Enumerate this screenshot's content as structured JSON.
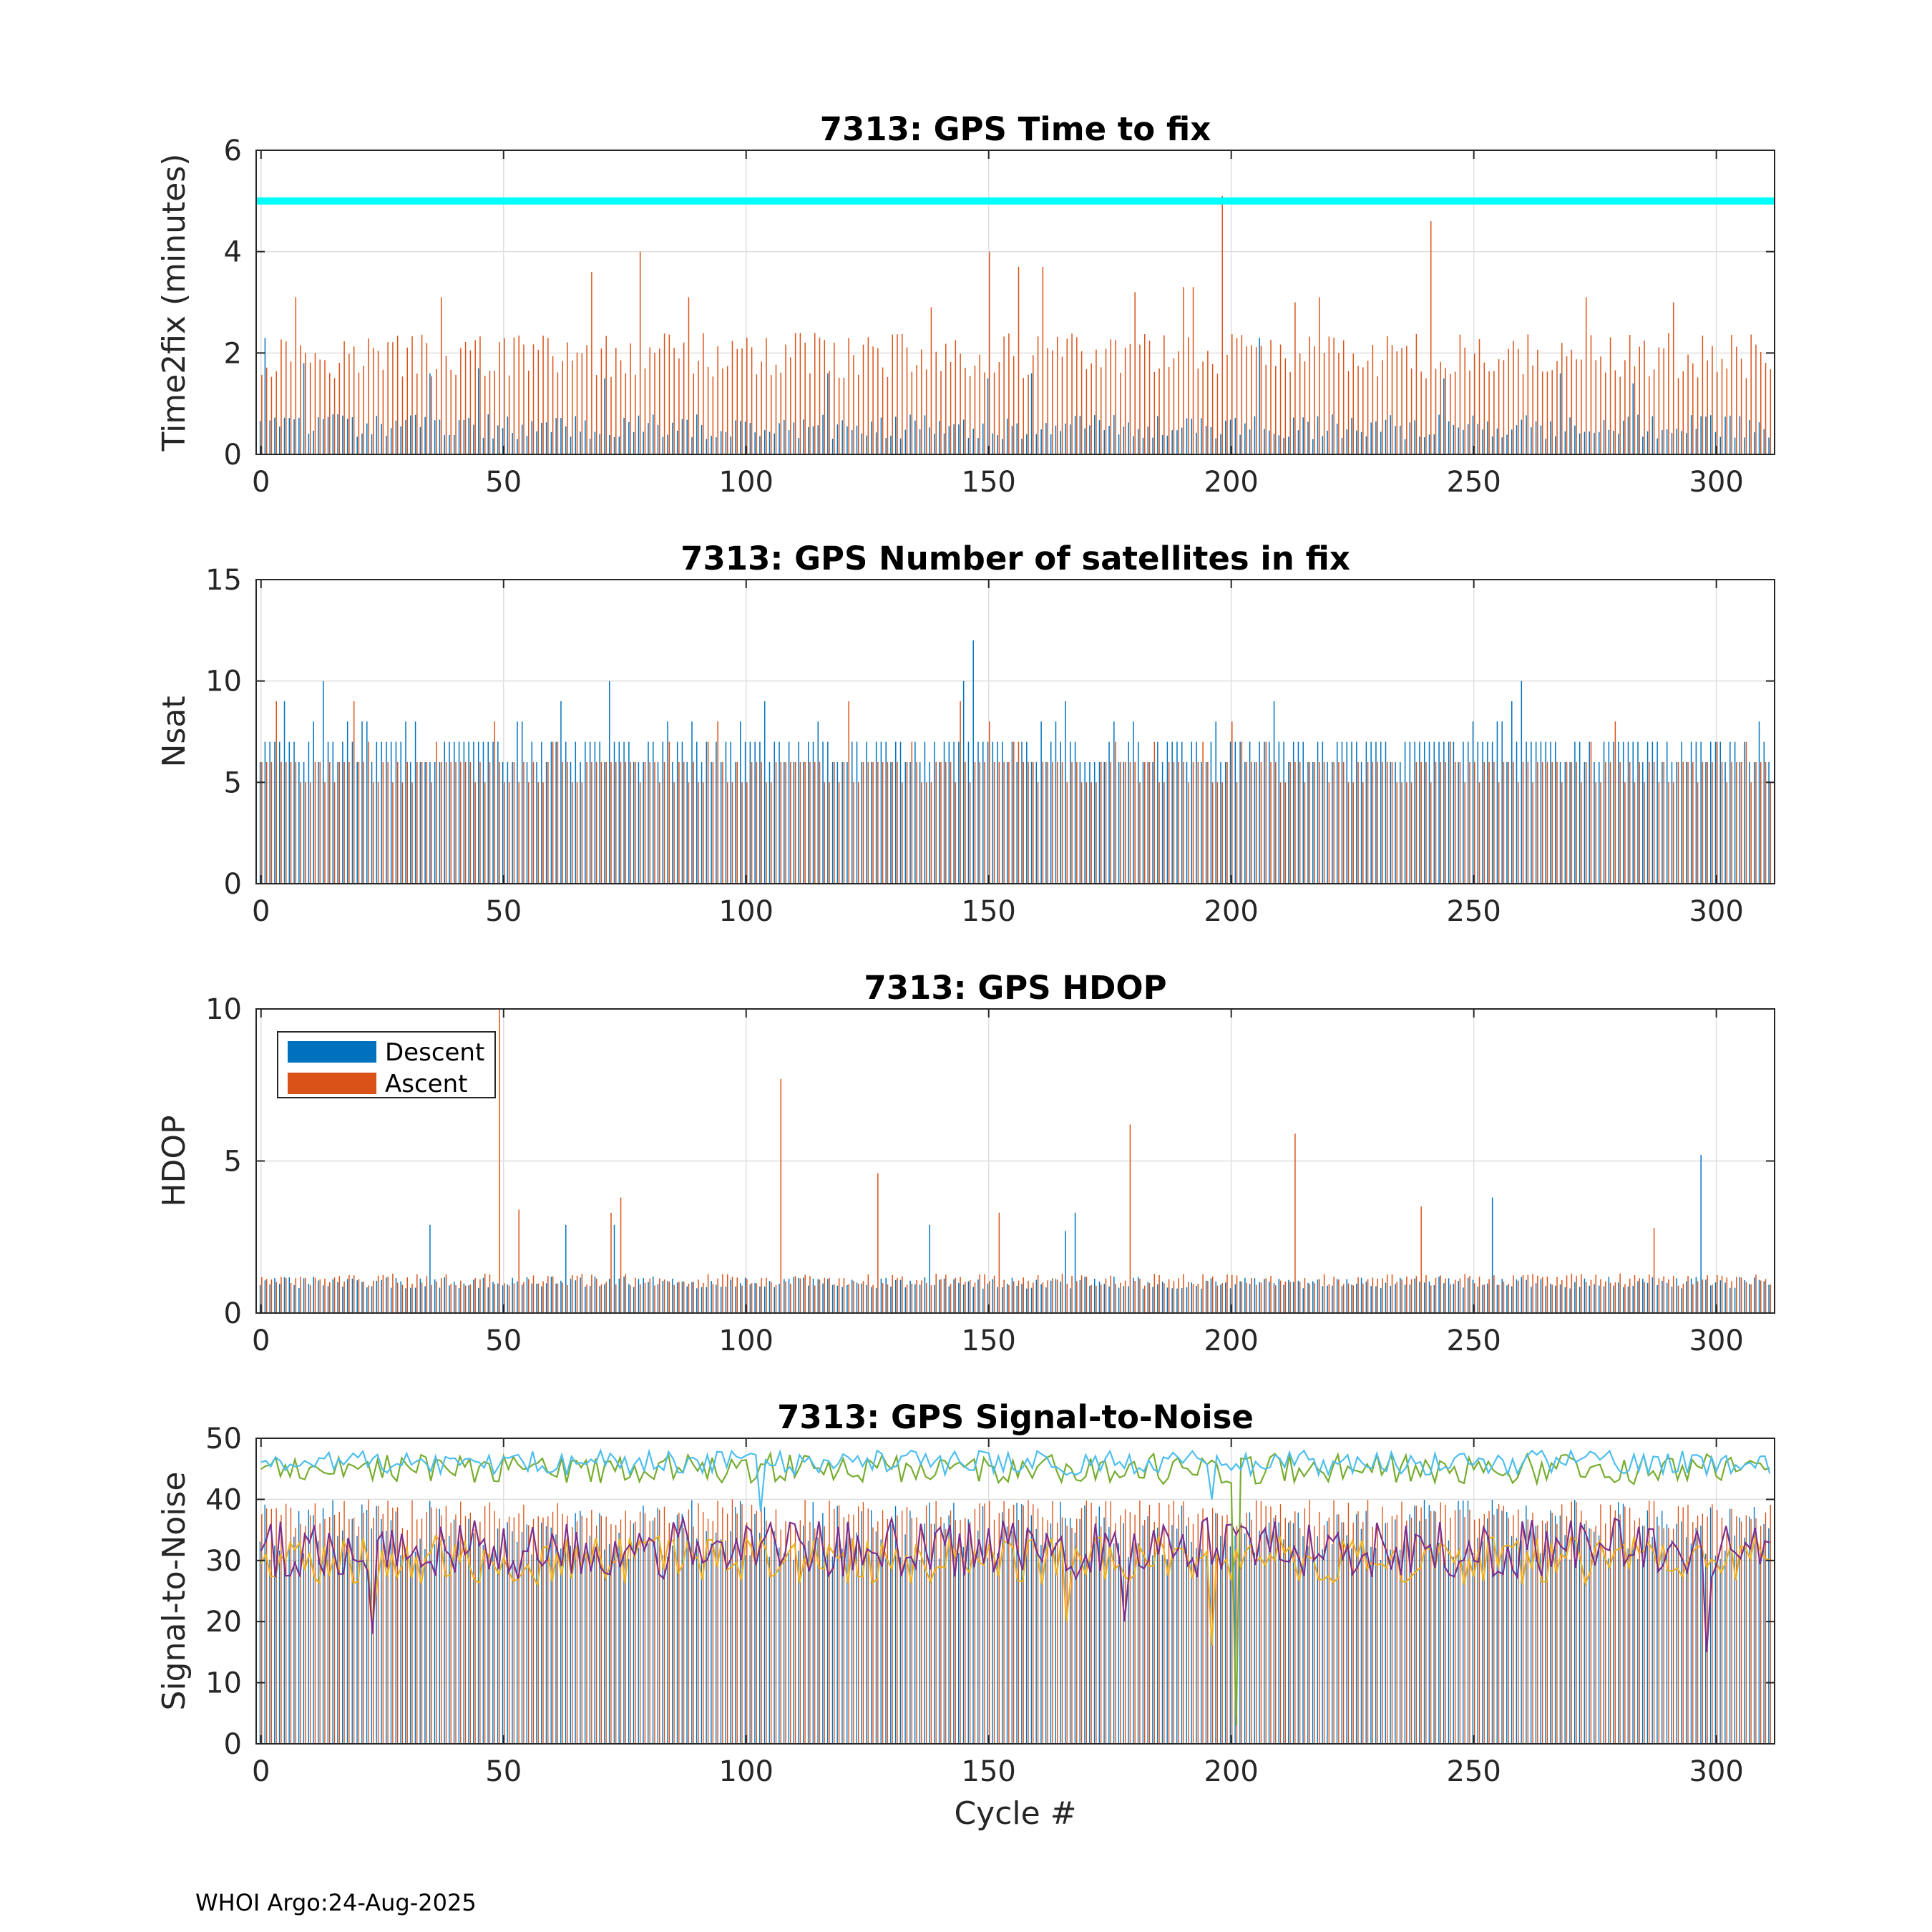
{
  "footer": "WHOI Argo:24-Aug-2025",
  "colors": {
    "descent": "#0072BD",
    "ascent": "#D95319",
    "threshold": "#00FFFF",
    "snr_lines": [
      "#EDB120",
      "#7E2F8E",
      "#77AC30",
      "#4DBEEE"
    ]
  },
  "chart_data": [
    {
      "type": "bar",
      "title": "7313: GPS Time to fix",
      "xlabel": "",
      "ylabel": "Time2fix (minutes)",
      "xlim": [
        -1,
        312
      ],
      "ylim": [
        0,
        6
      ],
      "xticks": [
        "0",
        "50",
        "100",
        "150",
        "200",
        "250",
        "300"
      ],
      "yticks": [
        "0",
        "2",
        "4",
        "6"
      ],
      "threshold": 5,
      "cycles": [
        0,
        311
      ],
      "series": [
        {
          "name": "Descent",
          "base": [
            0.8,
            0.3
          ],
          "peaks": [
            [
              1,
              2.3
            ],
            [
              9,
              1.8
            ],
            [
              35,
              1.6
            ],
            [
              45,
              1.7
            ],
            [
              71,
              1.5
            ],
            [
              117,
              1.6
            ],
            [
              150,
              1.5
            ],
            [
              159,
              1.6
            ],
            [
              206,
              2.3
            ],
            [
              244,
              1.5
            ],
            [
              268,
              1.6
            ],
            [
              283,
              1.4
            ]
          ]
        },
        {
          "name": "Ascent",
          "base": [
            1.5,
            2.4
          ],
          "peaks": [
            [
              7,
              3.1
            ],
            [
              37,
              3.1
            ],
            [
              68,
              3.6
            ],
            [
              78,
              4.0
            ],
            [
              88,
              3.1
            ],
            [
              138,
              2.9
            ],
            [
              150,
              4.0
            ],
            [
              156,
              3.7
            ],
            [
              161,
              3.7
            ],
            [
              180,
              3.2
            ],
            [
              190,
              3.3
            ],
            [
              192,
              3.3
            ],
            [
              198,
              5.1
            ],
            [
              213,
              3.0
            ],
            [
              218,
              3.1
            ],
            [
              241,
              4.6
            ],
            [
              273,
              3.1
            ],
            [
              291,
              3.0
            ]
          ]
        }
      ]
    },
    {
      "type": "bar",
      "title": "7313: GPS Number of satellites in fix",
      "xlabel": "",
      "ylabel": "Nsat",
      "xlim": [
        -1,
        312
      ],
      "ylim": [
        0,
        15
      ],
      "xticks": [
        "0",
        "50",
        "100",
        "150",
        "200",
        "250",
        "300"
      ],
      "yticks": [
        "0",
        "5",
        "10",
        "15"
      ],
      "cycles": [
        0,
        311
      ],
      "series": [
        {
          "name": "Descent",
          "base": [
            6,
            7
          ],
          "peaks": [
            [
              5,
              9
            ],
            [
              13,
              10
            ],
            [
              62,
              9
            ],
            [
              72,
              10
            ],
            [
              104,
              9
            ],
            [
              145,
              10
            ],
            [
              147,
              12
            ],
            [
              166,
              9
            ],
            [
              209,
              9
            ],
            [
              258,
              9
            ],
            [
              260,
              10
            ]
          ]
        },
        {
          "name": "Ascent",
          "base": [
            5,
            6
          ],
          "peaks": [
            [
              3,
              9
            ],
            [
              19,
              9
            ],
            [
              48,
              8
            ],
            [
              94,
              8
            ],
            [
              121,
              9
            ],
            [
              144,
              9
            ],
            [
              150,
              8
            ],
            [
              200,
              8
            ],
            [
              279,
              8
            ]
          ]
        }
      ]
    },
    {
      "type": "bar",
      "title": "7313: GPS HDOP",
      "xlabel": "",
      "ylabel": "HDOP",
      "xlim": [
        -1,
        312
      ],
      "ylim": [
        0,
        10
      ],
      "xticks": [
        "0",
        "50",
        "100",
        "150",
        "200",
        "250",
        "300"
      ],
      "yticks": [
        "0",
        "5",
        "10"
      ],
      "cycles": [
        0,
        311
      ],
      "legend": {
        "position": "top-left",
        "entries": [
          "Descent",
          "Ascent"
        ]
      },
      "series": [
        {
          "name": "Descent",
          "base": [
            0.8,
            1.2
          ],
          "peaks": [
            [
              35,
              2.9
            ],
            [
              63,
              2.9
            ],
            [
              73,
              2.9
            ],
            [
              138,
              2.9
            ],
            [
              166,
              2.7
            ],
            [
              168,
              3.3
            ],
            [
              254,
              3.8
            ],
            [
              297,
              5.2
            ]
          ]
        },
        {
          "name": "Ascent",
          "base": [
            0.9,
            1.3
          ],
          "peaks": [
            [
              49,
              10.0
            ],
            [
              53,
              3.4
            ],
            [
              72,
              3.3
            ],
            [
              74,
              3.8
            ],
            [
              107,
              7.7
            ],
            [
              127,
              4.6
            ],
            [
              152,
              3.3
            ],
            [
              179,
              6.2
            ],
            [
              213,
              5.9
            ],
            [
              239,
              3.5
            ],
            [
              287,
              2.8
            ]
          ]
        }
      ]
    },
    {
      "type": "bar",
      "title": "7313: GPS Signal-to-Noise",
      "xlabel": "Cycle #",
      "ylabel": "Signal-to-Noise",
      "xlim": [
        -1,
        312
      ],
      "ylim": [
        0,
        50
      ],
      "xticks": [
        "0",
        "50",
        "100",
        "150",
        "200",
        "250",
        "300"
      ],
      "yticks": [
        "0",
        "10",
        "20",
        "30",
        "40",
        "50"
      ],
      "cycles": [
        0,
        311
      ],
      "bars": {
        "descent_range": [
          30,
          40
        ],
        "ascent_range": [
          35,
          40
        ]
      },
      "lines": [
        {
          "name": "snr-1",
          "color": "#EDB120",
          "mean": 30,
          "amplitude": 4,
          "dips": [
            [
              23,
              20
            ],
            [
              166,
              20
            ],
            [
              196,
              16
            ]
          ]
        },
        {
          "name": "snr-2",
          "color": "#7E2F8E",
          "mean": 32,
          "amplitude": 5,
          "dips": [
            [
              23,
              18
            ],
            [
              178,
              20
            ],
            [
              298,
              15
            ]
          ]
        },
        {
          "name": "snr-3",
          "color": "#77AC30",
          "mean": 45,
          "amplitude": 2.5,
          "dips": [
            [
              201,
              3
            ]
          ]
        },
        {
          "name": "snr-4",
          "color": "#4DBEEE",
          "mean": 46,
          "amplitude": 2,
          "dips": [
            [
              103,
              38
            ],
            [
              196,
              40
            ]
          ]
        }
      ]
    }
  ]
}
